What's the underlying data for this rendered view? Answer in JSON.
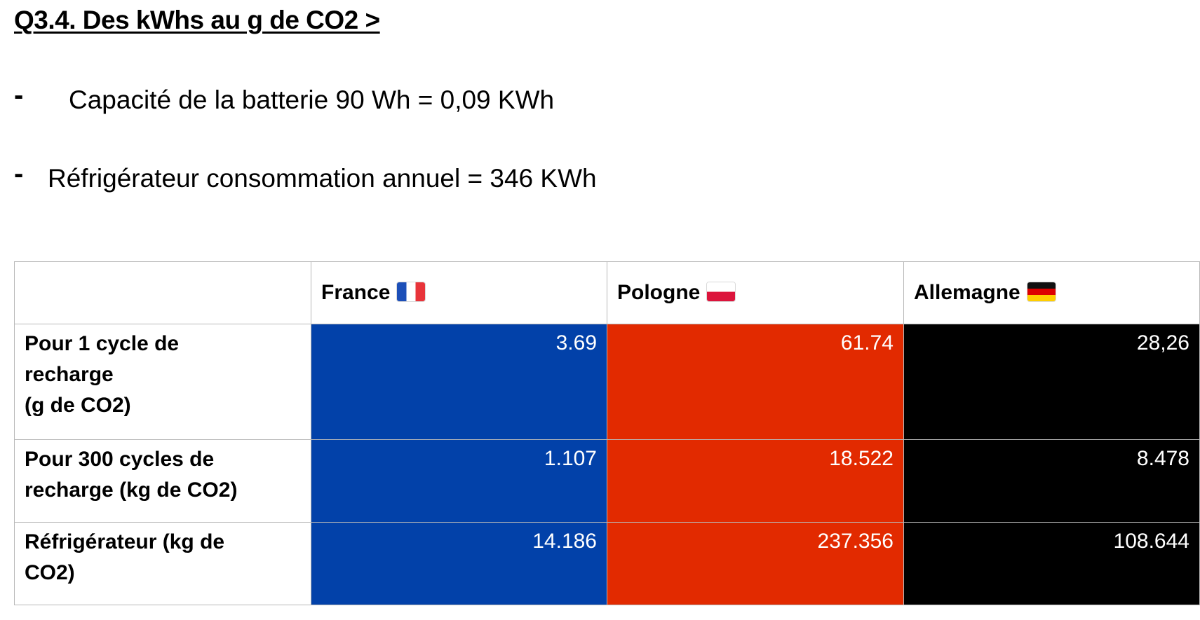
{
  "title": "Q3.4. Des kWhs au g de CO2 >",
  "bullets": [
    {
      "dash": "-",
      "text": "Capacité de la batterie 90 Wh = 0,09 KWh"
    },
    {
      "dash": "-",
      "text": "Réfrigérateur consommation annuel = 346 KWh"
    }
  ],
  "table": {
    "columns": [
      {
        "label": "France",
        "flag": "flag-france-icon",
        "color": "#0241a9"
      },
      {
        "label": "Pologne",
        "flag": "flag-poland-icon",
        "color": "#e22a00"
      },
      {
        "label": "Allemagne",
        "flag": "flag-germany-icon",
        "color": "#000000"
      }
    ],
    "rows": [
      {
        "label": "Pour 1 cycle de\nrecharge\n (g de CO2)",
        "values": [
          "3.69",
          "61.74",
          "28,26"
        ]
      },
      {
        "label": "Pour 300 cycles de\nrecharge (kg de CO2)",
        "values": [
          "1.107",
          "18.522",
          "8.478"
        ]
      },
      {
        "label": "Réfrigérateur (kg de\nCO2)",
        "values": [
          "14.186",
          "237.356",
          "108.644"
        ]
      }
    ]
  }
}
